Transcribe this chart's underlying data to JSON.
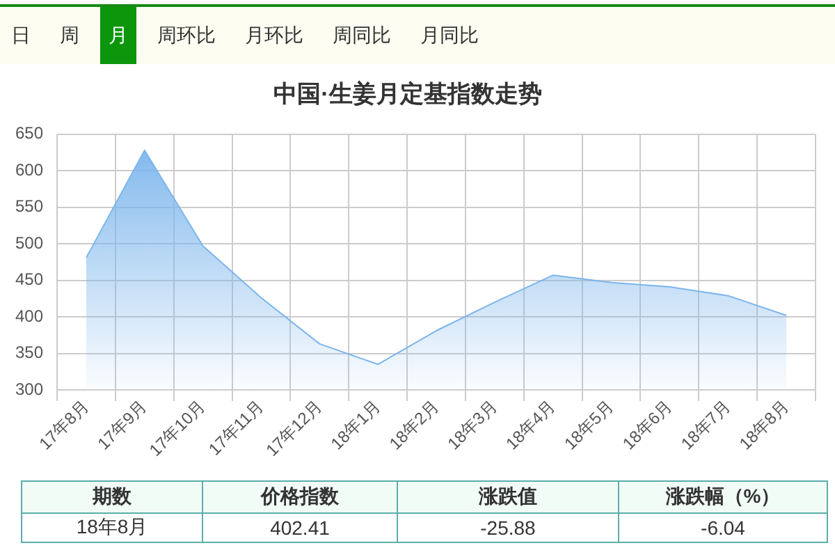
{
  "chart_data": {
    "type": "area",
    "title": "中国·生姜月定基指数走势",
    "categories": [
      "17年8月",
      "17年9月",
      "17年10月",
      "17年11月",
      "17年12月",
      "18年1月",
      "18年2月",
      "18年3月",
      "18年4月",
      "18年5月",
      "18年6月",
      "18年7月",
      "18年8月"
    ],
    "values": [
      481,
      628,
      497,
      426,
      363,
      335,
      381,
      420,
      457,
      447,
      441,
      429,
      402
    ],
    "color": "#7cb5ec",
    "ylim": [
      300,
      650
    ],
    "yticks": [
      300,
      350,
      400,
      450,
      500,
      550,
      600,
      650
    ],
    "grid": true,
    "legend": false,
    "marker": "none",
    "annotations": [
      "日",
      "周",
      "月",
      "周环比",
      "月环比",
      "周同比",
      "月同比",
      "期数",
      "价格指数",
      "涨跌值",
      "涨跌幅（%）",
      "18年8月",
      "402.41",
      "-25.88",
      "-6.04"
    ]
  }
}
